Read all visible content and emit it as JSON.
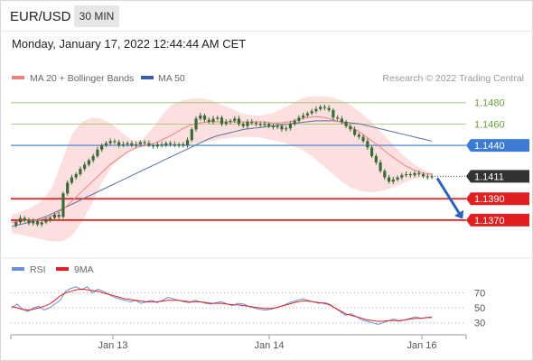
{
  "header": {
    "pair": "EUR/USD",
    "timeframe": "30 MIN",
    "datetime": "Monday, January 17, 2022 12:44:44 AM CET"
  },
  "credit": "Research © 2022 Trading Central",
  "colors": {
    "candle": "#3a6b35",
    "bollinger": "#f08080",
    "bollinger_band": "#fcd9d9",
    "ma50": "#5b6f9e",
    "resistance_green": "#8fbf5f",
    "pivot_blue": "#3b7bd4",
    "support_red": "#e02020",
    "last_price_bg": "#333333",
    "arrow": "#2a63b8",
    "rsi": "#6b8fd6",
    "rsi_ma": "#e02020"
  },
  "chart_data": [
    {
      "type": "candlestick",
      "title": "",
      "legend": [
        {
          "name": "MA 20 + Bollinger Bands",
          "color": "#f08080"
        },
        {
          "name": "MA 50",
          "color": "#3b5ea6"
        }
      ],
      "x_ticks": [
        "Jan 13",
        "Jan 14",
        "Jan 16"
      ],
      "ylim": [
        1.1353,
        1.1495
      ],
      "price_levels": [
        {
          "value": 1.148,
          "label": "1.1480",
          "kind": "resistance",
          "color": "#8fbf5f"
        },
        {
          "value": 1.146,
          "label": "1.1460",
          "kind": "resistance",
          "color": "#8fbf5f"
        },
        {
          "value": 1.144,
          "label": "1.1440",
          "kind": "pivot",
          "color": "#3b7bd4"
        },
        {
          "value": 1.1411,
          "label": "1.1411",
          "kind": "last",
          "color": "#333333"
        },
        {
          "value": 1.139,
          "label": "1.1390",
          "kind": "support",
          "color": "#e02020"
        },
        {
          "value": 1.137,
          "label": "1.1370",
          "kind": "support",
          "color": "#e02020"
        }
      ],
      "close_series": [
        1.1365,
        1.1368,
        1.1372,
        1.137,
        1.1367,
        1.1369,
        1.1366,
        1.1368,
        1.137,
        1.1372,
        1.1375,
        1.1373,
        1.1395,
        1.1405,
        1.141,
        1.1413,
        1.1418,
        1.1422,
        1.1426,
        1.143,
        1.1436,
        1.144,
        1.1442,
        1.1444,
        1.1443,
        1.144,
        1.1441,
        1.1442,
        1.144,
        1.1441,
        1.1443,
        1.1442,
        1.144,
        1.1439,
        1.1441,
        1.144,
        1.1442,
        1.1441,
        1.144,
        1.1441,
        1.144,
        1.1445,
        1.1455,
        1.1465,
        1.1468,
        1.1464,
        1.1462,
        1.1465,
        1.1466,
        1.146,
        1.1462,
        1.1463,
        1.1465,
        1.146,
        1.1458,
        1.1462,
        1.1461,
        1.146,
        1.1459,
        1.146,
        1.1458,
        1.1457,
        1.1458,
        1.1455,
        1.1456,
        1.146,
        1.1463,
        1.1466,
        1.1468,
        1.147,
        1.1472,
        1.1474,
        1.1476,
        1.1475,
        1.1473,
        1.1466,
        1.1465,
        1.1462,
        1.1458,
        1.1455,
        1.145,
        1.1448,
        1.1444,
        1.1438,
        1.143,
        1.1424,
        1.1416,
        1.141,
        1.1406,
        1.1408,
        1.141,
        1.1412,
        1.1413,
        1.1412,
        1.1414,
        1.1413,
        1.1411,
        1.141,
        1.1411
      ],
      "ma20_series": [
        1.1368,
        1.1369,
        1.137,
        1.137,
        1.1372,
        1.1376,
        1.1382,
        1.139,
        1.1398,
        1.1406,
        1.1414,
        1.1422,
        1.1428,
        1.1434,
        1.1438,
        1.144,
        1.1442,
        1.1446,
        1.145,
        1.1455,
        1.1459,
        1.1461,
        1.1462,
        1.1462,
        1.1462,
        1.1462,
        1.1462,
        1.1462,
        1.1462,
        1.1461,
        1.1461,
        1.1462,
        1.1464,
        1.1466,
        1.1467,
        1.1466,
        1.1464,
        1.1461,
        1.1457,
        1.1452,
        1.1446,
        1.144,
        1.1433,
        1.1427,
        1.1421,
        1.1417,
        1.1414,
        1.1413
      ],
      "ma50_series": [
        1.1364,
        1.1366,
        1.1368,
        1.1371,
        1.1374,
        1.1378,
        1.1382,
        1.1386,
        1.139,
        1.1394,
        1.1398,
        1.1402,
        1.1406,
        1.141,
        1.1414,
        1.1418,
        1.1422,
        1.1426,
        1.143,
        1.1434,
        1.1438,
        1.1442,
        1.1446,
        1.1449,
        1.1451,
        1.1453,
        1.1455,
        1.1456,
        1.1457,
        1.1458,
        1.1459,
        1.146,
        1.1461,
        1.1462,
        1.1463,
        1.1463,
        1.1463,
        1.1462,
        1.1461,
        1.146,
        1.1458,
        1.1456,
        1.1454,
        1.1452,
        1.145,
        1.1448,
        1.1446,
        1.1444
      ],
      "bollinger_upper_series": [
        1.1375,
        1.1378,
        1.1382,
        1.1388,
        1.14,
        1.1425,
        1.145,
        1.1462,
        1.1466,
        1.1465,
        1.146,
        1.1452,
        1.1445,
        1.1445,
        1.1455,
        1.1468,
        1.1478,
        1.1482,
        1.1484,
        1.1484,
        1.1482,
        1.1478,
        1.1474,
        1.147,
        1.1468,
        1.1468,
        1.147,
        1.1474,
        1.1479,
        1.1484,
        1.1486,
        1.1486,
        1.1485,
        1.1482,
        1.1477,
        1.147,
        1.1462,
        1.1452,
        1.1442,
        1.1432,
        1.1424,
        1.1418,
        1.1414
      ],
      "bollinger_lower_series": [
        1.1358,
        1.1356,
        1.1354,
        1.1352,
        1.135,
        1.135,
        1.1355,
        1.1368,
        1.1385,
        1.1405,
        1.142,
        1.143,
        1.1436,
        1.144,
        1.1441,
        1.1441,
        1.144,
        1.144,
        1.1441,
        1.1443,
        1.1444,
        1.1446,
        1.1447,
        1.1448,
        1.1448,
        1.1447,
        1.1445,
        1.1443,
        1.144,
        1.1436,
        1.143,
        1.1422,
        1.1414,
        1.1406,
        1.14,
        1.1397,
        1.1396,
        1.1397,
        1.14,
        1.1404,
        1.1408,
        1.141,
        1.1411
      ],
      "forecast_arrow": {
        "from": 1.1411,
        "to": 1.137
      }
    },
    {
      "type": "line",
      "title": "",
      "legend": [
        {
          "name": "RSI",
          "color": "#6b8fd6"
        },
        {
          "name": "9MA",
          "color": "#e02020"
        }
      ],
      "yticks": [
        70,
        50,
        30
      ],
      "ylim": [
        20,
        85
      ],
      "series": [
        {
          "name": "RSI",
          "values": [
            50,
            55,
            48,
            45,
            50,
            52,
            47,
            50,
            55,
            60,
            72,
            76,
            78,
            74,
            78,
            70,
            75,
            72,
            68,
            64,
            62,
            60,
            58,
            60,
            56,
            58,
            60,
            57,
            60,
            64,
            62,
            60,
            58,
            57,
            60,
            58,
            56,
            55,
            57,
            58,
            55,
            53,
            56,
            55,
            52,
            50,
            48,
            47,
            48,
            50,
            52,
            55,
            58,
            60,
            62,
            60,
            58,
            56,
            57,
            55,
            50,
            45,
            40,
            42,
            38,
            34,
            32,
            30,
            28,
            30,
            33,
            35,
            32,
            34,
            36,
            38,
            36,
            37,
            38
          ]
        },
        {
          "name": "9MA",
          "values": [
            52,
            50,
            48,
            47,
            48,
            50,
            52,
            55,
            60,
            66,
            70,
            72,
            74,
            75,
            74,
            73,
            72,
            70,
            68,
            66,
            64,
            62,
            61,
            60,
            59,
            58,
            58,
            58,
            59,
            60,
            60,
            60,
            59,
            58,
            58,
            58,
            57,
            56,
            56,
            56,
            55,
            54,
            54,
            53,
            52,
            51,
            50,
            49,
            49,
            50,
            52,
            54,
            56,
            58,
            59,
            59,
            58,
            57,
            56,
            54,
            50,
            46,
            42,
            40,
            38,
            36,
            34,
            33,
            32,
            32,
            33,
            33,
            33,
            34,
            35,
            36,
            36,
            37,
            37
          ]
        }
      ]
    }
  ]
}
